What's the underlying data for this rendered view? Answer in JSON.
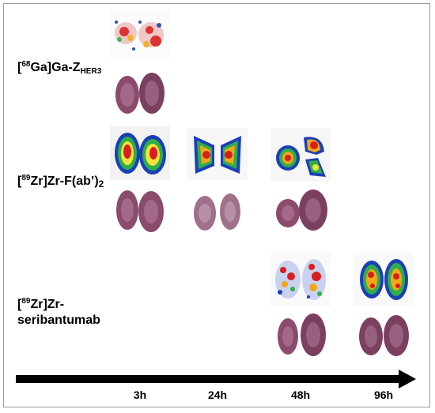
{
  "rows": [
    {
      "isotope": "68",
      "element": "Ga",
      "compound_prefix": "Ga-Z",
      "compound_sub": "HER3"
    },
    {
      "isotope": "89",
      "element": "Zr",
      "compound_prefix": "Zr-F(ab’)",
      "compound_sub": "2"
    },
    {
      "isotope": "89",
      "element": "Zr",
      "line1_suffix": "Zr-",
      "line2": "seribantumab"
    }
  ],
  "timepoints": [
    "3h",
    "24h",
    "48h",
    "96h"
  ],
  "colors": {
    "hot": "#d81e1e",
    "warm": "#f1a71a",
    "mid": "#f2e43a",
    "cool": "#2fae4a",
    "cold": "#1b3fb8",
    "tissue": "#8a4b6c",
    "tissue_light": "#b98aa3",
    "arrow": "#000000"
  }
}
